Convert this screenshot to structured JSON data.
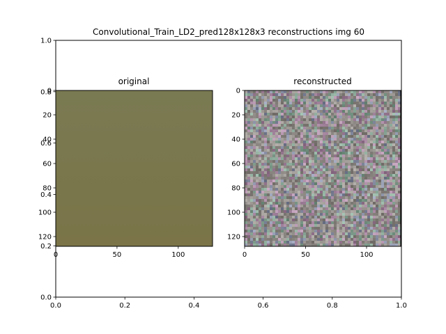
{
  "figure": {
    "title": "Convolutional_Train_LD2_pred128x128x3 reconstructions img 60"
  },
  "panels": {
    "original": {
      "title": "original",
      "fill_top": "#7a7a52",
      "fill_bottom": "#7a7448"
    },
    "reconstructed": {
      "title": "reconstructed",
      "base_color": "#8e8a86"
    }
  },
  "chart_data": [
    {
      "type": "image",
      "title": "Convolutional_Train_LD2_pred128x128x3 reconstructions img 60",
      "xlim": [
        0.0,
        1.0
      ],
      "ylim": [
        0.0,
        1.0
      ],
      "x_ticks": [
        0.0,
        0.2,
        0.4,
        0.6,
        0.8,
        1.0
      ],
      "x_tick_labels": [
        "0.0",
        "0.2",
        "0.4",
        "0.6",
        "0.8",
        "1.0"
      ],
      "y_ticks": [
        0.0,
        0.2,
        0.4,
        0.6,
        0.8,
        1.0
      ],
      "y_tick_labels": [
        "0.0",
        "0.2",
        "0.4",
        "0.6",
        "0.8",
        "1.0"
      ]
    },
    {
      "type": "image",
      "title": "original",
      "image_size": [
        128,
        128
      ],
      "xlim": [
        0,
        128
      ],
      "ylim": [
        128,
        0
      ],
      "x_ticks": [
        0,
        50,
        100
      ],
      "x_tick_labels": [
        "0",
        "50",
        "100"
      ],
      "y_ticks": [
        0,
        20,
        40,
        60,
        80,
        100,
        120
      ],
      "y_tick_labels": [
        "0",
        "20",
        "40",
        "60",
        "80",
        "100",
        "120"
      ]
    },
    {
      "type": "image",
      "title": "reconstructed",
      "image_size": [
        128,
        128
      ],
      "xlim": [
        0,
        128
      ],
      "ylim": [
        128,
        0
      ],
      "x_ticks": [
        0,
        50,
        100
      ],
      "x_tick_labels": [
        "0",
        "50",
        "100"
      ],
      "y_ticks": [
        0,
        20,
        40,
        60,
        80,
        100,
        120
      ],
      "y_tick_labels": [
        "0",
        "20",
        "40",
        "60",
        "80",
        "100",
        "120"
      ]
    }
  ]
}
